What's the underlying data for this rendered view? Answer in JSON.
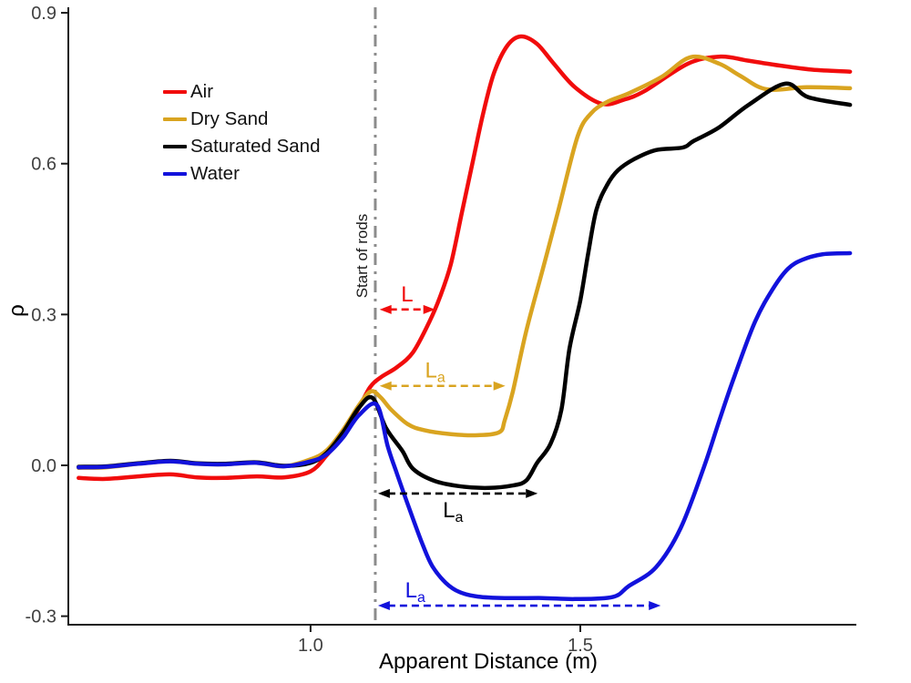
{
  "chart_data": {
    "type": "line",
    "title": "",
    "xlabel": "Apparent Distance (m)",
    "ylabel": "ρ",
    "grid": false,
    "legend_position": "upper-left-inside",
    "xlim": [
      0.551,
      2.113
    ],
    "ylim": [
      -0.317,
      0.911
    ],
    "x_ticks": [
      {
        "value": 1.0,
        "label": "1.0"
      },
      {
        "value": 1.5,
        "label": "1.5"
      }
    ],
    "y_ticks": [
      {
        "value": 0.9,
        "label": "0.9"
      },
      {
        "value": 0.6,
        "label": "0.6"
      },
      {
        "value": 0.3,
        "label": "0.3"
      },
      {
        "value": 0.0,
        "label": "0.0"
      },
      {
        "value": -0.3,
        "label": "-0.3"
      }
    ],
    "series": [
      {
        "name": "Air",
        "color": "#F10C0C",
        "x": [
          0.57,
          0.62,
          0.68,
          0.74,
          0.79,
          0.84,
          0.9,
          0.95,
          1.0,
          1.03,
          1.06,
          1.09,
          1.11,
          1.13,
          1.16,
          1.19,
          1.22,
          1.24,
          1.26,
          1.28,
          1.3,
          1.32,
          1.34,
          1.365,
          1.39,
          1.42,
          1.45,
          1.49,
          1.54,
          1.58,
          1.62,
          1.7,
          1.76,
          1.81,
          1.87,
          1.93,
          2.0
        ],
        "y": [
          -0.025,
          -0.027,
          -0.022,
          -0.018,
          -0.024,
          -0.025,
          -0.022,
          -0.024,
          -0.012,
          0.02,
          0.06,
          0.115,
          0.155,
          0.175,
          0.195,
          0.225,
          0.285,
          0.335,
          0.4,
          0.5,
          0.6,
          0.7,
          0.78,
          0.835,
          0.853,
          0.838,
          0.8,
          0.752,
          0.719,
          0.727,
          0.745,
          0.799,
          0.813,
          0.805,
          0.795,
          0.787,
          0.783
        ]
      },
      {
        "name": "Dry Sand",
        "color": "#D9A420",
        "x": [
          0.57,
          0.62,
          0.68,
          0.74,
          0.79,
          0.84,
          0.9,
          0.95,
          1.0,
          1.03,
          1.06,
          1.09,
          1.112,
          1.13,
          1.15,
          1.18,
          1.21,
          1.26,
          1.31,
          1.35,
          1.36,
          1.375,
          1.4,
          1.43,
          1.46,
          1.495,
          1.52,
          1.55,
          1.59,
          1.65,
          1.705,
          1.757,
          1.796,
          1.845,
          1.92,
          2.0
        ],
        "y": [
          -0.005,
          -0.004,
          0.003,
          0.008,
          0.003,
          0.002,
          0.005,
          -0.002,
          0.012,
          0.03,
          0.07,
          0.12,
          0.147,
          0.135,
          0.11,
          0.082,
          0.07,
          0.062,
          0.06,
          0.066,
          0.09,
          0.147,
          0.268,
          0.388,
          0.51,
          0.654,
          0.7,
          0.723,
          0.74,
          0.772,
          0.812,
          0.799,
          0.775,
          0.748,
          0.752,
          0.75
        ]
      },
      {
        "name": "Saturated Sand",
        "color": "#000000",
        "x": [
          0.57,
          0.62,
          0.68,
          0.74,
          0.79,
          0.84,
          0.9,
          0.95,
          1.0,
          1.03,
          1.06,
          1.09,
          1.115,
          1.14,
          1.17,
          1.19,
          1.23,
          1.28,
          1.33,
          1.375,
          1.4,
          1.42,
          1.445,
          1.465,
          1.48,
          1.5,
          1.515,
          1.53,
          1.55,
          1.57,
          1.6,
          1.64,
          1.69,
          1.71,
          1.757,
          1.812,
          1.88,
          1.923,
          2.0
        ],
        "y": [
          -0.003,
          -0.002,
          0.004,
          0.009,
          0.004,
          0.003,
          0.006,
          -0.001,
          0.005,
          0.025,
          0.065,
          0.115,
          0.134,
          0.074,
          0.029,
          -0.007,
          -0.031,
          -0.042,
          -0.045,
          -0.04,
          -0.03,
          0.005,
          0.043,
          0.111,
          0.232,
          0.328,
          0.424,
          0.509,
          0.558,
          0.587,
          0.609,
          0.627,
          0.632,
          0.645,
          0.672,
          0.717,
          0.759,
          0.732,
          0.717
        ]
      },
      {
        "name": "Water",
        "color": "#1212DC",
        "x": [
          0.57,
          0.62,
          0.68,
          0.74,
          0.79,
          0.84,
          0.9,
          0.95,
          1.0,
          1.03,
          1.06,
          1.09,
          1.123,
          1.143,
          1.16,
          1.184,
          1.209,
          1.226,
          1.251,
          1.276,
          1.31,
          1.36,
          1.43,
          1.49,
          1.56,
          1.59,
          1.64,
          1.686,
          1.729,
          1.757,
          1.786,
          1.824,
          1.857,
          1.885,
          1.912,
          1.95,
          2.0
        ],
        "y": [
          -0.004,
          -0.003,
          0.003,
          0.008,
          0.003,
          0.002,
          0.005,
          -0.002,
          0.008,
          0.022,
          0.055,
          0.1,
          0.12,
          0.038,
          -0.016,
          -0.089,
          -0.161,
          -0.201,
          -0.234,
          -0.252,
          -0.261,
          -0.264,
          -0.264,
          -0.266,
          -0.262,
          -0.24,
          -0.203,
          -0.125,
          -0.004,
          0.087,
          0.178,
          0.286,
          0.351,
          0.391,
          0.409,
          0.42,
          0.422
        ]
      }
    ],
    "annotations": {
      "vline": {
        "x": 1.12,
        "label": "Start of rods",
        "color": "#8C8C8C",
        "style": "dash-dot"
      },
      "arrows": [
        {
          "main": "L",
          "sub": "",
          "color": "#F10C0C",
          "y": 0.31,
          "x1": 1.128,
          "x2": 1.231,
          "label_x": 1.179,
          "label_side": "above"
        },
        {
          "main": "L",
          "sub": "a",
          "color": "#D9A420",
          "y": 0.158,
          "x1": 1.128,
          "x2": 1.361,
          "label_x": 1.231,
          "label_side": "above"
        },
        {
          "main": "L",
          "sub": "a",
          "color": "#000000",
          "y": -0.056,
          "x1": 1.125,
          "x2": 1.421,
          "label_x": 1.264,
          "label_side": "below"
        },
        {
          "main": "L",
          "sub": "a",
          "color": "#1212DC",
          "y": -0.279,
          "x1": 1.125,
          "x2": 1.649,
          "label_x": 1.194,
          "label_side": "above"
        }
      ]
    }
  }
}
